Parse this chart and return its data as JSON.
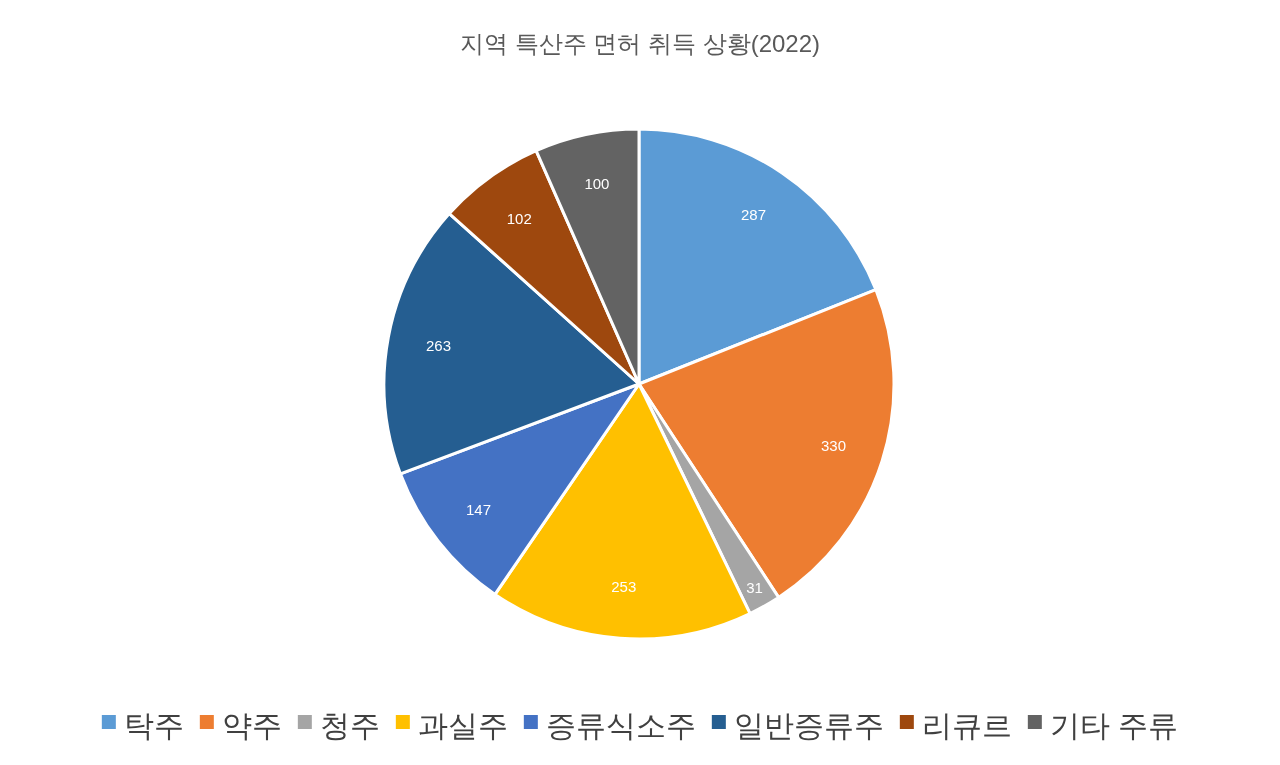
{
  "chart_data": {
    "type": "pie",
    "title": "지역 특산주 면허 취득 상황(2022)",
    "categories": [
      "탁주",
      "약주",
      "청주",
      "과실주",
      "증류식소주",
      "일반증류주",
      "리큐르",
      "기타 주류"
    ],
    "values": [
      287,
      330,
      31,
      253,
      147,
      263,
      102,
      100
    ],
    "colors": [
      "#5b9bd5",
      "#ed7d31",
      "#a5a5a5",
      "#ffc000",
      "#4472c4",
      "#255e91",
      "#9e480e",
      "#636363"
    ],
    "data_labels": true,
    "legend": "bottom"
  }
}
